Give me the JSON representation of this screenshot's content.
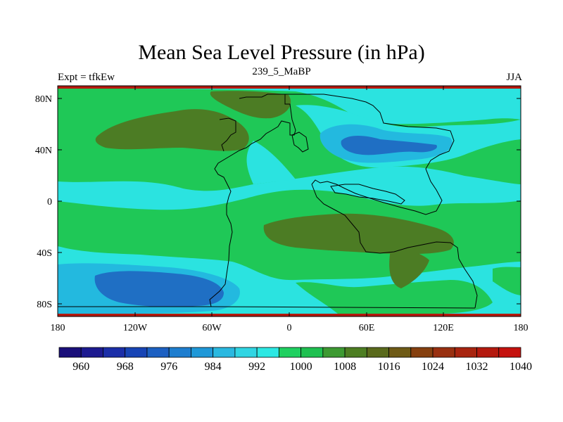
{
  "title": "Mean Sea Level Pressure (in hPa)",
  "subtitle_left": "Expt = tfkEw",
  "subtitle_center": "239_5_MaBP",
  "subtitle_right": "JJA",
  "y_ticks": [
    "80N",
    "40N",
    "0",
    "40S",
    "80S"
  ],
  "x_ticks": [
    "180",
    "120W",
    "60W",
    "0",
    "60E",
    "120E",
    "180"
  ],
  "colorbar": {
    "labels": [
      "960",
      "968",
      "976",
      "984",
      "992",
      "1000",
      "1008",
      "1016",
      "1024",
      "1032",
      "1040"
    ],
    "colors": [
      "#1a0f7a",
      "#1d1a90",
      "#1b2ea8",
      "#1744b5",
      "#1c60c2",
      "#1e7ecf",
      "#1f98d8",
      "#2ab8e0",
      "#30d5e3",
      "#2ce8e3",
      "#1fd060",
      "#1ec050",
      "#3d9a32",
      "#4d7e22",
      "#5a6a1c",
      "#6e5a16",
      "#86400f",
      "#993010",
      "#a8240f",
      "#b4190e",
      "#c5120e"
    ]
  },
  "colors": {
    "high_1008": "#1fc857",
    "high_1016": "#4c7c24",
    "low_1000": "#2be3e0",
    "low_992": "#23b9df",
    "low_984": "#1f6fc4",
    "frame_top": "#b4190e"
  }
}
